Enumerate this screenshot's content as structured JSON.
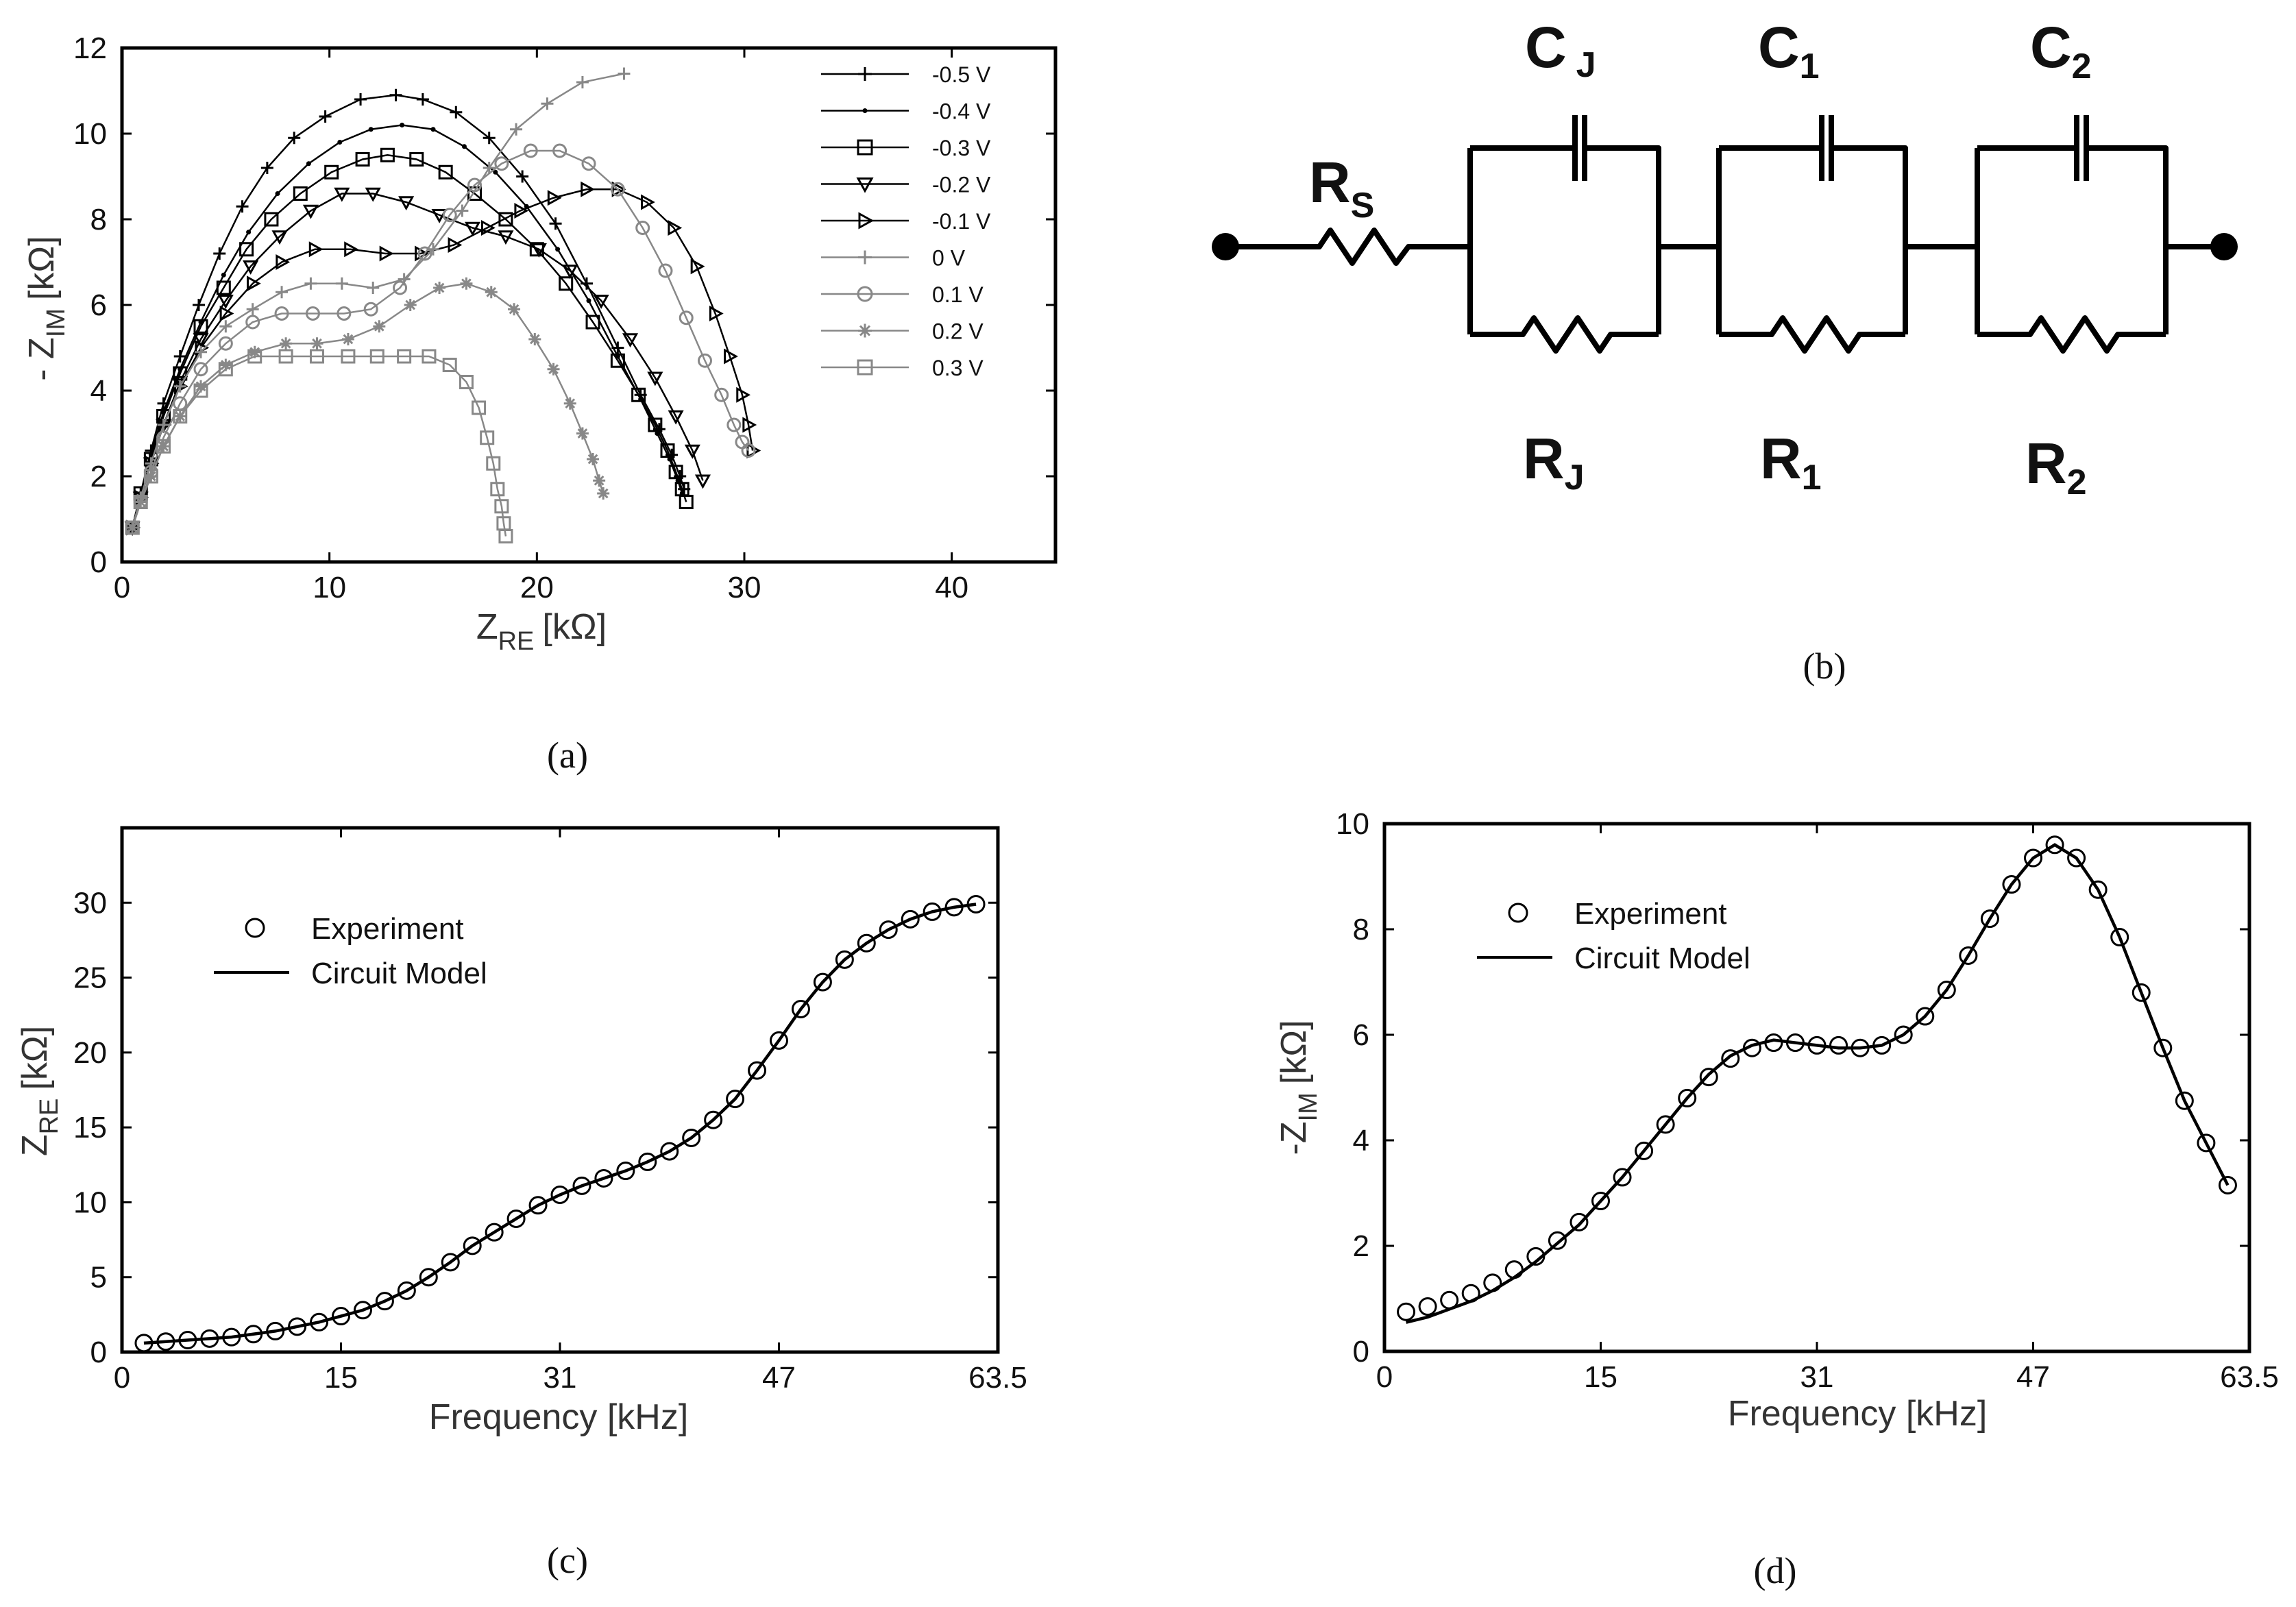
{
  "chart_data": [
    {
      "id": "a",
      "type": "scatter",
      "caption": "(a)",
      "xlabel": "Z",
      "xlabel_sub": "RE",
      "xlabel_unit": "[kΩ]",
      "ylabel": "- Z",
      "ylabel_sub": "IM",
      "ylabel_unit": "[kΩ]",
      "xlim": [
        0,
        45
      ],
      "ylim": [
        0,
        12
      ],
      "xticks": [
        0,
        10,
        20,
        30,
        40
      ],
      "yticks": [
        0,
        2,
        4,
        6,
        8,
        10,
        12
      ],
      "legend_position": "top-right",
      "series": [
        {
          "name": "-0.5 V",
          "color": "#000000",
          "marker": "plus",
          "dense": true,
          "x": [
            0.5,
            0.9,
            1.4,
            2.0,
            2.8,
            3.7,
            4.7,
            5.8,
            7.0,
            8.3,
            9.8,
            11.5,
            13.2,
            14.5,
            16.1,
            17.7,
            19.3,
            20.9,
            22.4,
            23.9,
            25.0,
            25.9,
            26.5,
            26.9,
            27.1
          ],
          "y": [
            0.8,
            1.6,
            2.6,
            3.7,
            4.8,
            6.0,
            7.2,
            8.3,
            9.2,
            9.9,
            10.4,
            10.8,
            10.9,
            10.8,
            10.5,
            9.9,
            9.0,
            7.9,
            6.5,
            5.0,
            3.9,
            3.1,
            2.5,
            2.0,
            1.7
          ]
        },
        {
          "name": "-0.4 V",
          "color": "#000000",
          "marker": "dot",
          "dense": true,
          "x": [
            0.5,
            0.9,
            1.4,
            2.0,
            2.8,
            3.8,
            4.9,
            6.1,
            7.5,
            9.0,
            10.5,
            12.0,
            13.5,
            15.0,
            16.5,
            18.0,
            19.5,
            21.0,
            22.5,
            23.9,
            25.0,
            25.8,
            26.4,
            26.8,
            27.0
          ],
          "y": [
            0.8,
            1.6,
            2.5,
            3.5,
            4.5,
            5.6,
            6.7,
            7.7,
            8.6,
            9.3,
            9.8,
            10.1,
            10.2,
            10.1,
            9.7,
            9.1,
            8.3,
            7.3,
            6.1,
            4.8,
            3.8,
            3.0,
            2.4,
            1.9,
            1.6
          ]
        },
        {
          "name": "-0.3 V",
          "color": "#000000",
          "marker": "square",
          "dense": true,
          "x": [
            0.5,
            0.9,
            1.4,
            2.0,
            2.8,
            3.8,
            4.9,
            6.0,
            7.2,
            8.6,
            10.1,
            11.6,
            12.8,
            14.2,
            15.6,
            17.0,
            18.5,
            20.0,
            21.4,
            22.7,
            23.9,
            24.9,
            25.7,
            26.3,
            26.7,
            27.0,
            27.2
          ],
          "y": [
            0.8,
            1.6,
            2.4,
            3.4,
            4.4,
            5.5,
            6.4,
            7.3,
            8.0,
            8.6,
            9.1,
            9.4,
            9.5,
            9.4,
            9.1,
            8.6,
            8.0,
            7.3,
            6.5,
            5.6,
            4.7,
            3.9,
            3.2,
            2.6,
            2.1,
            1.7,
            1.4
          ]
        },
        {
          "name": "-0.2 V",
          "color": "#000000",
          "marker": "tri_down",
          "dense": true,
          "x": [
            0.5,
            0.9,
            1.4,
            2.0,
            2.8,
            3.8,
            5.0,
            6.2,
            7.6,
            9.1,
            10.6,
            12.1,
            13.7,
            15.3,
            16.9,
            18.5,
            20.1,
            21.6,
            23.1,
            24.5,
            25.7,
            26.7,
            27.5,
            28.0
          ],
          "y": [
            0.8,
            1.5,
            2.3,
            3.2,
            4.2,
            5.2,
            6.1,
            6.9,
            7.6,
            8.2,
            8.6,
            8.6,
            8.4,
            8.1,
            7.8,
            7.6,
            7.3,
            6.8,
            6.1,
            5.2,
            4.3,
            3.4,
            2.6,
            1.9
          ]
        },
        {
          "name": "-0.1 V",
          "color": "#000000",
          "marker": "tri_right",
          "dense": true,
          "x": [
            0.5,
            0.9,
            1.4,
            2.0,
            2.8,
            3.8,
            5.0,
            6.3,
            7.7,
            9.3,
            11.0,
            12.7,
            14.4,
            16.0,
            17.6,
            19.2,
            20.8,
            22.4,
            23.9,
            25.3,
            26.6,
            27.7,
            28.6,
            29.3,
            29.9,
            30.2,
            30.4
          ],
          "y": [
            0.8,
            1.5,
            2.3,
            3.2,
            4.1,
            5.0,
            5.8,
            6.5,
            7.0,
            7.3,
            7.3,
            7.2,
            7.2,
            7.4,
            7.8,
            8.2,
            8.5,
            8.7,
            8.7,
            8.4,
            7.8,
            6.9,
            5.8,
            4.8,
            3.9,
            3.2,
            2.6
          ]
        },
        {
          "name": "0 V",
          "color": "#888888",
          "marker": "plus",
          "dense": true,
          "x": [
            0.5,
            0.9,
            1.4,
            2.0,
            2.8,
            3.8,
            5.0,
            6.3,
            7.7,
            9.1,
            10.6,
            12.1,
            13.6,
            15.0,
            16.4,
            17.7,
            19.0,
            20.5,
            22.2,
            24.2
          ],
          "y": [
            0.8,
            1.5,
            2.3,
            3.2,
            4.1,
            4.9,
            5.5,
            5.9,
            6.3,
            6.5,
            6.5,
            6.4,
            6.6,
            7.3,
            8.2,
            9.2,
            10.1,
            10.7,
            11.2,
            11.4
          ]
        },
        {
          "name": "0.1 V",
          "color": "#888888",
          "marker": "circle",
          "dense": true,
          "x": [
            0.5,
            0.9,
            1.4,
            2.0,
            2.8,
            3.8,
            5.0,
            6.3,
            7.7,
            9.2,
            10.7,
            12.0,
            13.4,
            14.6,
            15.8,
            17.0,
            18.3,
            19.7,
            21.1,
            22.5,
            23.9,
            25.1,
            26.2,
            27.2,
            28.1,
            28.9,
            29.5,
            29.9,
            30.2
          ],
          "y": [
            0.8,
            1.4,
            2.1,
            2.9,
            3.7,
            4.5,
            5.1,
            5.6,
            5.8,
            5.8,
            5.8,
            5.9,
            6.4,
            7.2,
            8.1,
            8.8,
            9.3,
            9.6,
            9.6,
            9.3,
            8.7,
            7.8,
            6.8,
            5.7,
            4.7,
            3.9,
            3.2,
            2.8,
            2.6
          ]
        },
        {
          "name": "0.2 V",
          "color": "#888888",
          "marker": "star",
          "dense": true,
          "x": [
            0.5,
            0.9,
            1.4,
            2.0,
            2.8,
            3.8,
            5.0,
            6.4,
            7.9,
            9.4,
            10.9,
            12.4,
            13.9,
            15.3,
            16.6,
            17.8,
            18.9,
            19.9,
            20.8,
            21.6,
            22.2,
            22.7,
            23.0,
            23.2
          ],
          "y": [
            0.8,
            1.4,
            2.0,
            2.7,
            3.4,
            4.1,
            4.6,
            4.9,
            5.1,
            5.1,
            5.2,
            5.5,
            6.0,
            6.4,
            6.5,
            6.3,
            5.9,
            5.2,
            4.5,
            3.7,
            3.0,
            2.4,
            1.9,
            1.6
          ]
        },
        {
          "name": "0.3 V",
          "color": "#888888",
          "marker": "square",
          "dense": true,
          "x": [
            0.5,
            0.9,
            1.4,
            2.0,
            2.8,
            3.8,
            5.0,
            6.4,
            7.9,
            9.4,
            10.9,
            12.3,
            13.6,
            14.8,
            15.8,
            16.6,
            17.2,
            17.6,
            17.9,
            18.1,
            18.3,
            18.4,
            18.5
          ],
          "y": [
            0.8,
            1.4,
            2.0,
            2.7,
            3.4,
            4.0,
            4.5,
            4.8,
            4.8,
            4.8,
            4.8,
            4.8,
            4.8,
            4.8,
            4.6,
            4.2,
            3.6,
            2.9,
            2.3,
            1.7,
            1.3,
            0.9,
            0.6
          ]
        }
      ]
    },
    {
      "id": "c",
      "type": "line",
      "caption": "(c)",
      "xlabel": "Frequency [kHz]",
      "ylabel": "Z",
      "ylabel_sub": "RE",
      "ylabel_unit": "[kΩ]",
      "xlim": [
        0,
        60
      ],
      "ylim": [
        0,
        35
      ],
      "xticks": [
        0,
        15,
        30,
        45,
        60
      ],
      "xticklabels": [
        "0",
        "15",
        "31",
        "47",
        "63.5"
      ],
      "yticks": [
        0,
        5,
        10,
        15,
        20,
        25,
        30
      ],
      "legend_position": "top-left",
      "series": [
        {
          "name": "Experiment",
          "marker": "circle",
          "x": [
            1.5,
            3.0,
            4.5,
            6.0,
            7.5,
            9.0,
            10.5,
            12.0,
            13.5,
            15.0,
            16.5,
            18.0,
            19.5,
            21.0,
            22.5,
            24.0,
            25.5,
            27.0,
            28.5,
            30.0,
            31.5,
            33.0,
            34.5,
            36.0,
            37.5,
            39.0,
            40.5,
            42.0,
            43.5,
            45.0,
            46.5,
            48.0,
            49.5,
            51.0,
            52.5,
            54.0,
            55.5,
            57.0,
            58.5
          ],
          "y": [
            0.6,
            0.7,
            0.8,
            0.9,
            1.0,
            1.2,
            1.4,
            1.7,
            2.0,
            2.4,
            2.8,
            3.4,
            4.1,
            5.0,
            6.0,
            7.1,
            8.0,
            8.9,
            9.8,
            10.5,
            11.1,
            11.6,
            12.1,
            12.7,
            13.4,
            14.3,
            15.5,
            16.9,
            18.8,
            20.8,
            22.9,
            24.7,
            26.2,
            27.3,
            28.2,
            28.9,
            29.4,
            29.7,
            29.9
          ]
        },
        {
          "name": "Circuit Model",
          "marker": "line",
          "x": [
            1.5,
            3.0,
            4.5,
            6.0,
            7.5,
            9.0,
            10.5,
            12.0,
            13.5,
            15.0,
            16.5,
            18.0,
            19.5,
            21.0,
            22.5,
            24.0,
            25.5,
            27.0,
            28.5,
            30.0,
            31.5,
            33.0,
            34.5,
            36.0,
            37.5,
            39.0,
            40.5,
            42.0,
            43.5,
            45.0,
            46.5,
            48.0,
            49.5,
            51.0,
            52.5,
            54.0,
            55.5,
            57.0,
            58.5
          ],
          "y": [
            0.6,
            0.7,
            0.8,
            0.9,
            1.0,
            1.2,
            1.4,
            1.7,
            2.0,
            2.4,
            2.8,
            3.4,
            4.1,
            5.0,
            6.0,
            7.1,
            8.0,
            8.9,
            9.8,
            10.5,
            11.1,
            11.6,
            12.1,
            12.7,
            13.4,
            14.3,
            15.5,
            16.9,
            18.8,
            20.8,
            22.9,
            24.7,
            26.2,
            27.3,
            28.2,
            28.9,
            29.4,
            29.7,
            29.9
          ]
        }
      ]
    },
    {
      "id": "d",
      "type": "line",
      "caption": "(d)",
      "xlabel": "Frequency [kHz]",
      "ylabel": "-Z",
      "ylabel_sub": "IM",
      "ylabel_unit": "[kΩ]",
      "xlim": [
        0,
        60
      ],
      "ylim": [
        0,
        10
      ],
      "xticks": [
        0,
        15,
        30,
        45,
        60
      ],
      "xticklabels": [
        "0",
        "15",
        "31",
        "47",
        "63.5"
      ],
      "yticks": [
        0,
        2,
        4,
        6,
        8,
        10
      ],
      "legend_position": "top-left",
      "series": [
        {
          "name": "Experiment",
          "marker": "circle",
          "x": [
            1.5,
            3.0,
            4.5,
            6.0,
            7.5,
            9.0,
            10.5,
            12.0,
            13.5,
            15.0,
            16.5,
            18.0,
            19.5,
            21.0,
            22.5,
            24.0,
            25.5,
            27.0,
            28.5,
            30.0,
            31.5,
            33.0,
            34.5,
            36.0,
            37.5,
            39.0,
            40.5,
            42.0,
            43.5,
            45.0,
            46.5,
            48.0,
            49.5,
            51.0,
            52.5,
            54.0,
            55.5,
            57.0,
            58.5
          ],
          "y": [
            0.75,
            0.85,
            0.97,
            1.1,
            1.3,
            1.55,
            1.8,
            2.1,
            2.45,
            2.85,
            3.3,
            3.8,
            4.3,
            4.8,
            5.2,
            5.55,
            5.75,
            5.85,
            5.85,
            5.8,
            5.8,
            5.75,
            5.8,
            6.0,
            6.35,
            6.85,
            7.5,
            8.2,
            8.85,
            9.35,
            9.6,
            9.35,
            8.75,
            7.85,
            6.8,
            5.75,
            4.75,
            3.95,
            3.15
          ]
        },
        {
          "name": "Circuit Model",
          "marker": "line",
          "x": [
            1.5,
            3.0,
            4.5,
            6.0,
            7.5,
            9.0,
            10.5,
            12.0,
            13.5,
            15.0,
            16.5,
            18.0,
            19.5,
            21.0,
            22.5,
            24.0,
            25.5,
            27.0,
            28.5,
            30.0,
            31.5,
            33.0,
            34.5,
            36.0,
            37.5,
            39.0,
            40.5,
            42.0,
            43.5,
            45.0,
            46.5,
            48.0,
            49.5,
            51.0,
            52.5,
            54.0,
            55.5,
            57.0,
            58.5
          ],
          "y": [
            0.55,
            0.65,
            0.8,
            0.95,
            1.15,
            1.4,
            1.7,
            2.05,
            2.4,
            2.85,
            3.3,
            3.8,
            4.3,
            4.8,
            5.25,
            5.6,
            5.8,
            5.9,
            5.85,
            5.8,
            5.75,
            5.75,
            5.8,
            6.0,
            6.35,
            6.85,
            7.5,
            8.2,
            8.85,
            9.35,
            9.6,
            9.35,
            8.75,
            7.85,
            6.8,
            5.75,
            4.75,
            3.95,
            3.15
          ]
        }
      ]
    }
  ],
  "circuit": {
    "caption": "(b)",
    "rs_main": "R",
    "rs_sub": "S",
    "cj_main": "C",
    "cj_sub": "J",
    "c1_main": "C",
    "c1_sub": "1",
    "c2_main": "C",
    "c2_sub": "2",
    "rj_main": "R",
    "rj_sub": "J",
    "r1_main": "R",
    "r1_sub": "1",
    "r2_main": "R",
    "r2_sub": "2"
  },
  "colors": {
    "black": "#000000",
    "gray": "#888888"
  }
}
